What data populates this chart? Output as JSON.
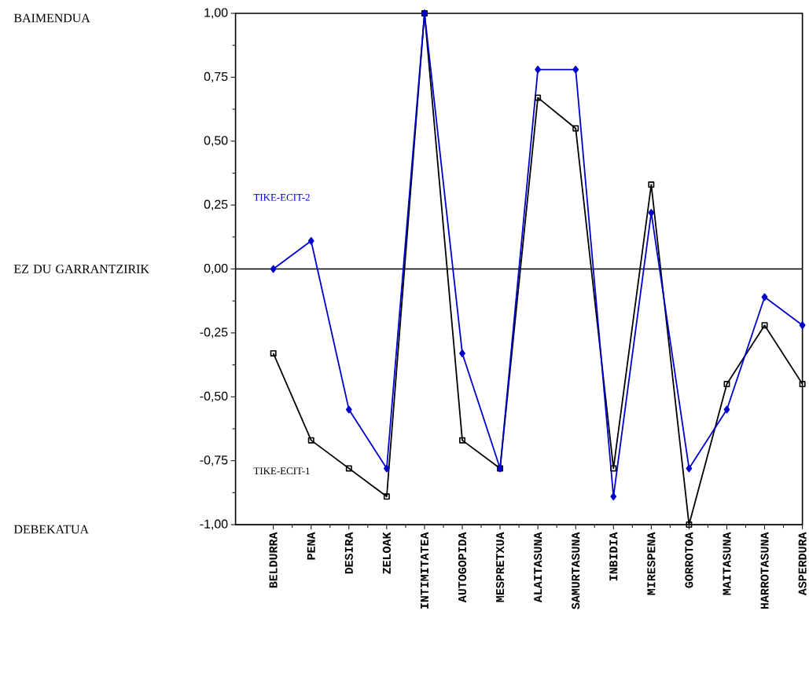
{
  "chart_data": {
    "type": "line",
    "categories": [
      "BELDURRA",
      "PENA",
      "DESIRA",
      "ZELOAK",
      "INTIMITATEA",
      "AUTOGOPIDA",
      "MESPRETXUA",
      "ALAITASUNA",
      "SAMURTASUNA",
      "INBIDIA",
      "MIRESPENA",
      "GORROTOA",
      "MAITASUNA",
      "HARROTASUNA",
      "ASPERDURA"
    ],
    "series": [
      {
        "name": "TIKE-ECIT-1",
        "color": "#000000",
        "marker": "square",
        "values": [
          -0.33,
          -0.67,
          -0.78,
          -0.89,
          1.0,
          -0.67,
          -0.78,
          0.67,
          0.55,
          -0.78,
          0.33,
          -1.0,
          -0.45,
          -0.22,
          -0.45
        ]
      },
      {
        "name": "TIKE-ECIT-2",
        "color": "#0000cc",
        "marker": "diamond",
        "values": [
          0.0,
          0.11,
          -0.55,
          -0.78,
          1.0,
          -0.33,
          -0.78,
          0.78,
          0.78,
          -0.89,
          0.22,
          -0.78,
          -0.55,
          -0.11,
          -0.22
        ]
      }
    ],
    "ylim": [
      -1,
      1
    ],
    "yticks": [
      {
        "value": -1,
        "label": "-1,00"
      },
      {
        "value": -0.75,
        "label": "-0,75"
      },
      {
        "value": -0.5,
        "label": "-0,50"
      },
      {
        "value": -0.25,
        "label": "-0,25"
      },
      {
        "value": 0,
        "label": "0,00"
      },
      {
        "value": 0.25,
        "label": "0,25"
      },
      {
        "value": 0.5,
        "label": "0,50"
      },
      {
        "value": 0.75,
        "label": "0,75"
      },
      {
        "value": 1,
        "label": "1,00"
      }
    ],
    "ref_lines": [
      {
        "axis": "y",
        "value": 0,
        "color": "#000000"
      }
    ],
    "annotations": [
      "BAIMENDUA",
      "EZ DU GARRANTZIRIK",
      "DEBEKATUA"
    ],
    "grid": false,
    "legend": "left"
  }
}
